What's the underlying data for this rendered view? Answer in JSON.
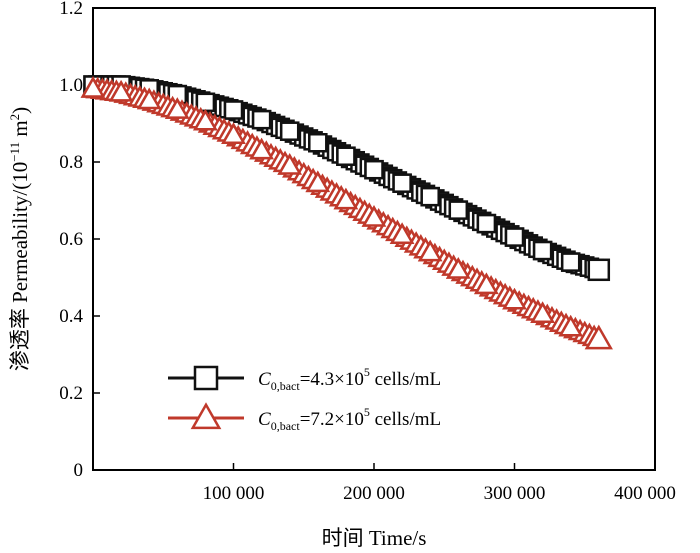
{
  "chart_data": {
    "type": "scatter",
    "title": "",
    "xlabel": "时间 Time/s",
    "ylabel_parts": {
      "main": "渗透率 Permeability/(10",
      "exp": "−11",
      "unit": " m",
      "unit_exp": "2",
      "close": ")"
    },
    "xlim": [
      0,
      400000
    ],
    "ylim": [
      0,
      1.2
    ],
    "x_ticks": [
      {
        "value": 100000,
        "label": "100 000"
      },
      {
        "value": 200000,
        "label": "200 000"
      },
      {
        "value": 300000,
        "label": "300 000"
      },
      {
        "value": 400000,
        "label": "400 000"
      }
    ],
    "y_ticks": [
      {
        "value": 0,
        "label": "0"
      },
      {
        "value": 0.2,
        "label": "0.2"
      },
      {
        "value": 0.4,
        "label": "0.4"
      },
      {
        "value": 0.6,
        "label": "0.6"
      },
      {
        "value": 0.8,
        "label": "0.8"
      },
      {
        "value": 1.0,
        "label": "1.0"
      },
      {
        "value": 1.2,
        "label": "1.2"
      }
    ],
    "grid": false,
    "legend_position": "bottom-left",
    "series": [
      {
        "legend": {
          "var": "C",
          "sub": "0,bact",
          "text1": "=4.3×10",
          "sup": "5",
          "text2": " cells/mL"
        },
        "marker": "square",
        "color": "#111111",
        "x": [
          0,
          20000,
          40000,
          60000,
          80000,
          100000,
          120000,
          140000,
          160000,
          180000,
          200000,
          220000,
          240000,
          260000,
          280000,
          300000,
          320000,
          340000,
          360000
        ],
        "y": [
          1.0,
          1.0,
          0.99,
          0.975,
          0.955,
          0.935,
          0.91,
          0.88,
          0.85,
          0.815,
          0.78,
          0.745,
          0.71,
          0.675,
          0.64,
          0.605,
          0.57,
          0.54,
          0.52
        ]
      },
      {
        "legend": {
          "var": "C",
          "sub": "0,bact",
          "text1": "=7.2×10",
          "sup": "5",
          "text2": " cells/mL"
        },
        "marker": "triangle",
        "color": "#c0392b",
        "x": [
          0,
          20000,
          40000,
          60000,
          80000,
          100000,
          120000,
          140000,
          160000,
          180000,
          200000,
          220000,
          240000,
          260000,
          280000,
          300000,
          320000,
          340000,
          360000
        ],
        "y": [
          0.99,
          0.98,
          0.96,
          0.935,
          0.905,
          0.87,
          0.83,
          0.79,
          0.745,
          0.7,
          0.655,
          0.61,
          0.565,
          0.52,
          0.48,
          0.44,
          0.405,
          0.37,
          0.34
        ]
      }
    ]
  }
}
